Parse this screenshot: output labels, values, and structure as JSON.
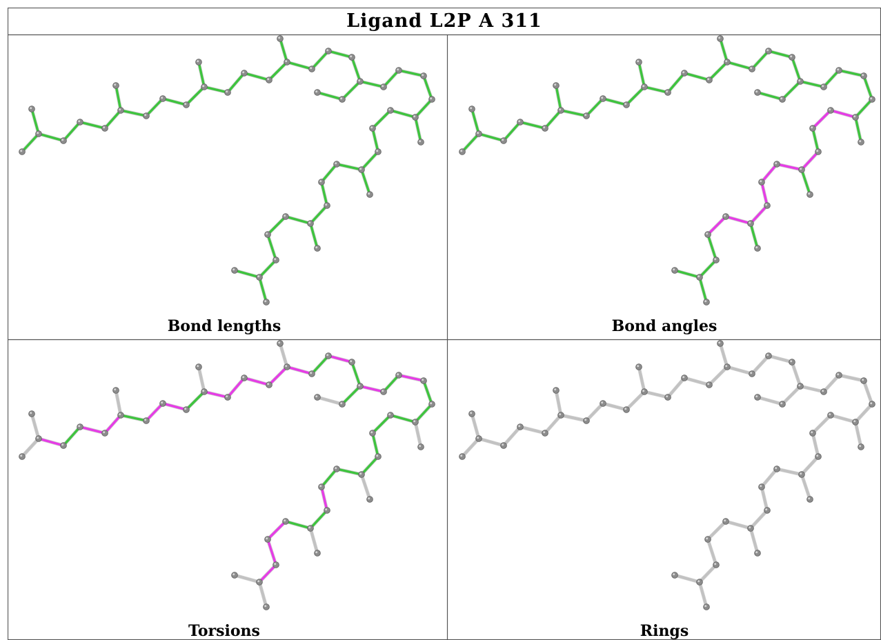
{
  "title": "Ligand L2P A 311",
  "panels": [
    {
      "id": "bond-lengths",
      "caption": "Bond lengths"
    },
    {
      "id": "bond-angles",
      "caption": "Bond angles"
    },
    {
      "id": "torsions",
      "caption": "Torsions"
    },
    {
      "id": "rings",
      "caption": "Rings"
    }
  ],
  "colors": {
    "ok": "#3ec43e",
    "outlier": "#e63ce6",
    "not_assessed": "#c2c2c2",
    "atom": "#8c8c8c",
    "border": "#555555"
  }
}
